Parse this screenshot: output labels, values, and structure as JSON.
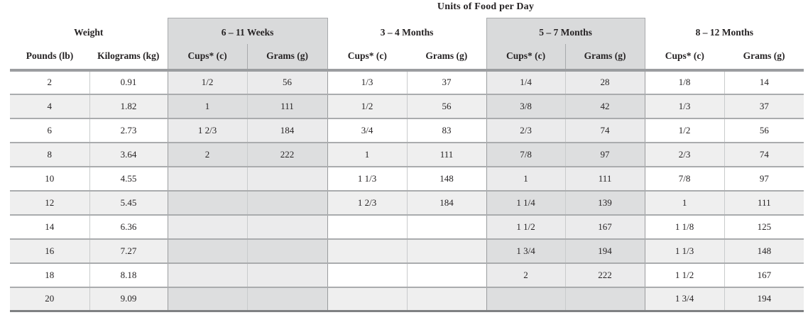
{
  "title": "Units of Food per Day",
  "colors": {
    "group_header_bg": "#d9dadb",
    "zebra_odd": "#ffffff",
    "zebra_even": "#efefef",
    "shaded_col_odd": "#ebebec",
    "shaded_col_even": "#dddedf",
    "blocked_cell": "#bcbec0",
    "row_border": "#aaacae",
    "column_border": "#c9cbcc",
    "header_rule": "#9b9da0",
    "bottom_rule": "#7f8183",
    "text": "#262324"
  },
  "table": {
    "weight_group_label": "Weight",
    "columns": {
      "pounds": "Pounds (lb)",
      "kilograms": "Kilograms (kg)",
      "cups": "Cups* (c)",
      "grams": "Grams (g)"
    },
    "age_groups": [
      {
        "label": "6 – 11 Weeks",
        "shaded": true
      },
      {
        "label": "3 – 4 Months",
        "shaded": false
      },
      {
        "label": "5 – 7 Months",
        "shaded": true
      },
      {
        "label": "8 – 12 Months",
        "shaded": false
      }
    ],
    "rows": [
      {
        "pounds": "2",
        "kilograms": "0.91",
        "cells": [
          "1/2",
          "56",
          "1/3",
          "37",
          "1/4",
          "28",
          "1/8",
          "14"
        ]
      },
      {
        "pounds": "4",
        "kilograms": "1.82",
        "cells": [
          "1",
          "111",
          "1/2",
          "56",
          "3/8",
          "42",
          "1/3",
          "37"
        ]
      },
      {
        "pounds": "6",
        "kilograms": "2.73",
        "cells": [
          "1 2/3",
          "184",
          "3/4",
          "83",
          "2/3",
          "74",
          "1/2",
          "56"
        ]
      },
      {
        "pounds": "8",
        "kilograms": "3.64",
        "cells": [
          "2",
          "222",
          "1",
          "111",
          "7/8",
          "97",
          "2/3",
          "74"
        ]
      },
      {
        "pounds": "10",
        "kilograms": "4.55",
        "cells": [
          null,
          null,
          "1 1/3",
          "148",
          "1",
          "111",
          "7/8",
          "97"
        ]
      },
      {
        "pounds": "12",
        "kilograms": "5.45",
        "cells": [
          null,
          null,
          "1 2/3",
          "184",
          "1 1/4",
          "139",
          "1",
          "111"
        ]
      },
      {
        "pounds": "14",
        "kilograms": "6.36",
        "cells": [
          null,
          null,
          null,
          null,
          "1 1/2",
          "167",
          "1 1/8",
          "125"
        ]
      },
      {
        "pounds": "16",
        "kilograms": "7.27",
        "cells": [
          null,
          null,
          null,
          null,
          "1 3/4",
          "194",
          "1 1/3",
          "148"
        ]
      },
      {
        "pounds": "18",
        "kilograms": "8.18",
        "cells": [
          null,
          null,
          null,
          null,
          "2",
          "222",
          "1 1/2",
          "167"
        ]
      },
      {
        "pounds": "20",
        "kilograms": "9.09",
        "cells": [
          null,
          null,
          null,
          null,
          null,
          null,
          "1 3/4",
          "194"
        ]
      }
    ]
  }
}
